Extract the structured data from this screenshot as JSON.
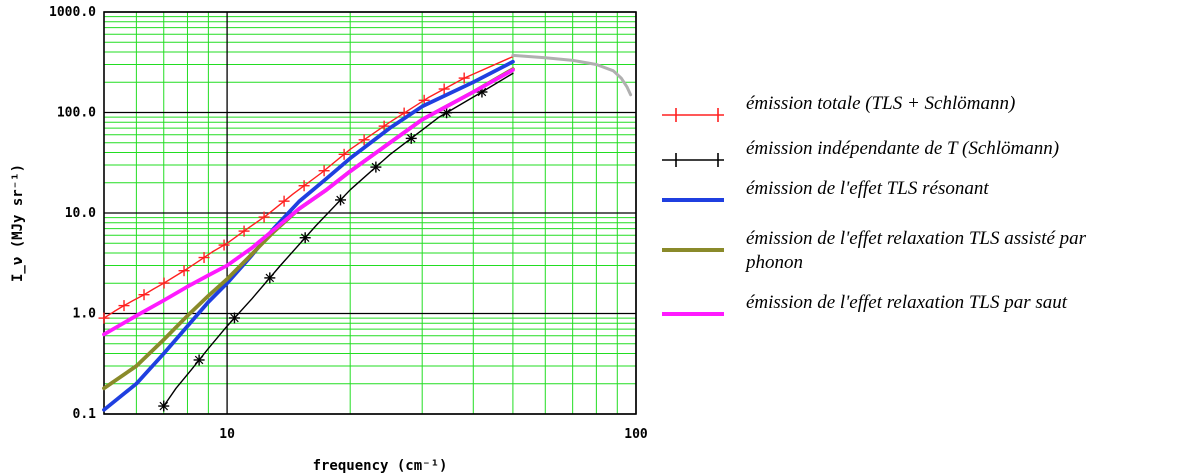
{
  "chart_data": {
    "type": "line",
    "title": "",
    "xlabel": "frequency (cm⁻¹)",
    "ylabel": "I_ν (MJy sr⁻¹)",
    "x_scale": "log",
    "y_scale": "log",
    "xlim": [
      5,
      100
    ],
    "ylim": [
      0.1,
      1000
    ],
    "grid": true,
    "x_ticks": [
      {
        "value": 10,
        "label": "10"
      },
      {
        "value": 100,
        "label": "100"
      }
    ],
    "y_ticks": [
      {
        "value": 0.1,
        "label": "0.1"
      },
      {
        "value": 1,
        "label": "1.0"
      },
      {
        "value": 10,
        "label": "10.0"
      },
      {
        "value": 100,
        "label": "100.0"
      },
      {
        "value": 1000,
        "label": "1000.0"
      }
    ],
    "legend_position": "right",
    "series": [
      {
        "name": "émission totale (TLS + Schlömann)",
        "color": "#ff2020",
        "marker": "plus",
        "marker_count": 19,
        "x": [
          5.0,
          5.3,
          5.6,
          5.9,
          6.2,
          6.6,
          7.0,
          7.4,
          8.0,
          8.6,
          9.2,
          10.0,
          11.0,
          12.5,
          14.5,
          17.0,
          20.0,
          25.0,
          31.0,
          38.0,
          50.0
        ],
        "y": [
          0.9,
          1.05,
          1.2,
          1.35,
          1.5,
          1.75,
          2.0,
          2.3,
          2.8,
          3.4,
          4.1,
          5.0,
          6.6,
          9.5,
          15.5,
          25.0,
          43.0,
          80.0,
          140.0,
          220.0,
          360.0
        ]
      },
      {
        "name": "émission indépendante de T (Schlömann)",
        "color": "#000000",
        "marker": "star",
        "marker_count": 10,
        "x": [
          7.0,
          7.5,
          8.2,
          9.0,
          10.0,
          11.5,
          13.5,
          16.5,
          20.0,
          25.0,
          33.0,
          42.0,
          50.0
        ],
        "y": [
          0.12,
          0.18,
          0.28,
          0.45,
          0.75,
          1.4,
          3.0,
          7.5,
          17.0,
          38.0,
          90.0,
          160.0,
          245.0
        ]
      },
      {
        "name": "émission de l'effet TLS résonant",
        "color": "#1f3fe0",
        "marker": "none",
        "x": [
          5.0,
          6.0,
          7.0,
          8.0,
          9.0,
          10.0,
          11.5,
          13.0,
          15.0,
          17.5,
          20.0,
          25.0,
          30.0,
          40.0,
          50.0
        ],
        "y": [
          0.11,
          0.2,
          0.4,
          0.75,
          1.3,
          2.0,
          3.8,
          7.0,
          13.0,
          22.0,
          35.0,
          70.0,
          115.0,
          200.0,
          320.0
        ]
      },
      {
        "name": "émission de l'effet relaxation TLS assisté par phonon",
        "color": "#8a8a2a",
        "marker": "none",
        "x": [
          5.0,
          6.0,
          7.0,
          8.0,
          9.0,
          10.0,
          11.5,
          13.0,
          15.0,
          17.5,
          20.0,
          25.0,
          30.0,
          40.0,
          50.0
        ],
        "y": [
          0.18,
          0.3,
          0.55,
          0.95,
          1.5,
          2.2,
          3.9,
          6.5,
          11.0,
          17.0,
          26.0,
          50.0,
          85.0,
          160.0,
          270.0
        ]
      },
      {
        "name": "émission de l'effet relaxation TLS par saut",
        "color": "#ff1aff",
        "marker": "none",
        "x": [
          5.0,
          6.0,
          7.0,
          8.0,
          9.0,
          10.0,
          11.5,
          13.0,
          15.0,
          17.5,
          20.0,
          25.0,
          30.0,
          40.0,
          50.0
        ],
        "y": [
          0.62,
          0.95,
          1.35,
          1.85,
          2.4,
          3.0,
          4.5,
          6.8,
          11.0,
          17.0,
          26.0,
          50.0,
          85.0,
          160.0,
          265.0
        ]
      },
      {
        "name": "",
        "color": "#b0b0b0",
        "marker": "none",
        "x": [
          50.0,
          60.0,
          70.0,
          80.0,
          88.0,
          92.0,
          95.0,
          97.0
        ],
        "y": [
          370.0,
          350.0,
          330.0,
          300.0,
          260.0,
          220.0,
          180.0,
          150.0
        ]
      }
    ]
  }
}
